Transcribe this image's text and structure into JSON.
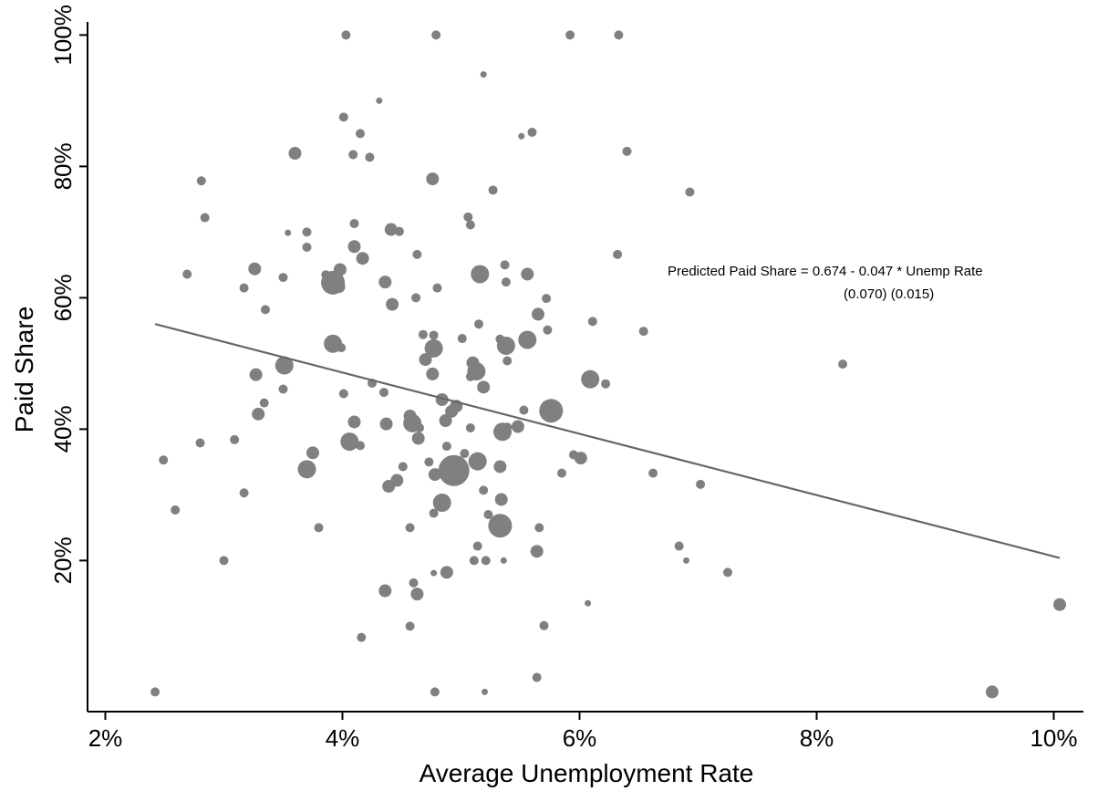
{
  "chart_data": {
    "type": "scatter",
    "xlabel": "Average Unemployment Rate",
    "ylabel": "Paid Share",
    "xlim": [
      1.85,
      10.25
    ],
    "ylim": [
      -3,
      102
    ],
    "x_ticks": [
      {
        "value": 2,
        "label": "2%"
      },
      {
        "value": 4,
        "label": "4%"
      },
      {
        "value": 6,
        "label": "6%"
      },
      {
        "value": 8,
        "label": "8%"
      },
      {
        "value": 10,
        "label": "10%"
      }
    ],
    "y_ticks": [
      {
        "value": 20,
        "label": "20%"
      },
      {
        "value": 40,
        "label": "40%"
      },
      {
        "value": 60,
        "label": "60%"
      },
      {
        "value": 80,
        "label": "80%"
      },
      {
        "value": 100,
        "label": "100%"
      }
    ],
    "grid": false,
    "marker_color": "#808080",
    "fit_line": {
      "x": [
        2.42,
        10.05
      ],
      "y": [
        56.0,
        20.4
      ],
      "color": "#666666"
    },
    "annotation": {
      "line1": "Predicted Paid Share = 0.674 - 0.047 * Unemp Rate",
      "line2": "(0.070) (0.015)"
    },
    "points": [
      [
        4.03,
        100,
        "s"
      ],
      [
        4.79,
        100,
        "s"
      ],
      [
        5.92,
        100,
        "s"
      ],
      [
        6.33,
        100,
        "s"
      ],
      [
        5.19,
        94,
        "xs"
      ],
      [
        4.31,
        90,
        "xs"
      ],
      [
        4.01,
        87.5,
        "s"
      ],
      [
        5.6,
        85.2,
        "s"
      ],
      [
        4.15,
        85,
        "s"
      ],
      [
        5.51,
        84.6,
        "xs"
      ],
      [
        3.6,
        82,
        "m"
      ],
      [
        4.09,
        81.8,
        "s"
      ],
      [
        4.23,
        81.4,
        "s"
      ],
      [
        6.4,
        82.3,
        "s"
      ],
      [
        2.81,
        77.8,
        "s"
      ],
      [
        4.76,
        78.1,
        "m"
      ],
      [
        5.27,
        76.4,
        "s"
      ],
      [
        6.93,
        76.1,
        "s"
      ],
      [
        2.84,
        72.2,
        "s"
      ],
      [
        4.1,
        71.3,
        "s"
      ],
      [
        5.06,
        72.3,
        "s"
      ],
      [
        5.08,
        71.1,
        "s"
      ],
      [
        3.54,
        69.9,
        "xs"
      ],
      [
        3.7,
        70,
        "s"
      ],
      [
        4.41,
        70.4,
        "m"
      ],
      [
        4.48,
        70.1,
        "s"
      ],
      [
        3.7,
        67.7,
        "s"
      ],
      [
        4.1,
        67.8,
        "m"
      ],
      [
        4.17,
        66,
        "m"
      ],
      [
        4.63,
        66.6,
        "s"
      ],
      [
        6.32,
        66.6,
        "s"
      ],
      [
        5.37,
        65,
        "s"
      ],
      [
        2.69,
        63.6,
        "s"
      ],
      [
        3.26,
        64.4,
        "m"
      ],
      [
        3.5,
        63.1,
        "s"
      ],
      [
        3.86,
        63.5,
        "s"
      ],
      [
        3.98,
        64.3,
        "m"
      ],
      [
        3.92,
        62.3,
        "xl"
      ],
      [
        3.97,
        61.7,
        "m"
      ],
      [
        4.36,
        62.4,
        "m"
      ],
      [
        4.8,
        61.5,
        "s"
      ],
      [
        5.16,
        63.6,
        "l"
      ],
      [
        5.38,
        62.4,
        "s"
      ],
      [
        5.56,
        63.6,
        "m"
      ],
      [
        3.17,
        61.5,
        "s"
      ],
      [
        4.62,
        60,
        "s"
      ],
      [
        5.72,
        59.9,
        "s"
      ],
      [
        4.42,
        59,
        "m"
      ],
      [
        3.35,
        58.2,
        "s"
      ],
      [
        5.65,
        57.5,
        "m"
      ],
      [
        6.11,
        56.4,
        "s"
      ],
      [
        5.15,
        56,
        "s"
      ],
      [
        6.54,
        54.9,
        "s"
      ],
      [
        5.73,
        55.1,
        "s"
      ],
      [
        4.68,
        54.4,
        "s"
      ],
      [
        4.77,
        54.3,
        "s"
      ],
      [
        5.01,
        53.8,
        "s"
      ],
      [
        5.33,
        53.7,
        "s"
      ],
      [
        5.56,
        53.6,
        "l"
      ],
      [
        3.92,
        53,
        "l"
      ],
      [
        3.99,
        52.4,
        "s"
      ],
      [
        4.77,
        52.3,
        "l"
      ],
      [
        5.38,
        52.7,
        "l"
      ],
      [
        5.39,
        50.4,
        "s"
      ],
      [
        4.7,
        50.6,
        "m"
      ],
      [
        5.1,
        50.1,
        "m"
      ],
      [
        5.13,
        48.8,
        "l"
      ],
      [
        4.76,
        48.4,
        "m"
      ],
      [
        5.08,
        48,
        "s"
      ],
      [
        8.22,
        49.9,
        "s"
      ],
      [
        3.51,
        49.7,
        "l"
      ],
      [
        3.27,
        48.3,
        "m"
      ],
      [
        6.09,
        47.6,
        "l"
      ],
      [
        6.22,
        46.9,
        "s"
      ],
      [
        4.25,
        47,
        "s"
      ],
      [
        5.19,
        46.4,
        "m"
      ],
      [
        3.5,
        46.1,
        "s"
      ],
      [
        4.01,
        45.4,
        "s"
      ],
      [
        4.35,
        45.6,
        "s"
      ],
      [
        4.84,
        44.5,
        "m"
      ],
      [
        3.34,
        44,
        "s"
      ],
      [
        4.96,
        43.5,
        "m"
      ],
      [
        4.92,
        42.7,
        "m"
      ],
      [
        5.76,
        42.8,
        "xl"
      ],
      [
        5.53,
        42.9,
        "s"
      ],
      [
        3.29,
        42.3,
        "m"
      ],
      [
        4.57,
        42,
        "m"
      ],
      [
        4.87,
        41.3,
        "m"
      ],
      [
        4.1,
        41.1,
        "m"
      ],
      [
        4.37,
        40.8,
        "m"
      ],
      [
        4.59,
        40.9,
        "l"
      ],
      [
        4.65,
        40.2,
        "s"
      ],
      [
        5.08,
        40.2,
        "s"
      ],
      [
        5.39,
        40.3,
        "s"
      ],
      [
        5.48,
        40.4,
        "m"
      ],
      [
        5.35,
        39.6,
        "l"
      ],
      [
        4.64,
        38.6,
        "m"
      ],
      [
        4.06,
        38.1,
        "l"
      ],
      [
        3.09,
        38.4,
        "s"
      ],
      [
        2.8,
        37.9,
        "s"
      ],
      [
        4.15,
        37.5,
        "s"
      ],
      [
        4.88,
        37.4,
        "s"
      ],
      [
        3.75,
        36.4,
        "m"
      ],
      [
        5.03,
        36.3,
        "s"
      ],
      [
        5.95,
        36.1,
        "s"
      ],
      [
        6.01,
        35.6,
        "m"
      ],
      [
        2.49,
        35.3,
        "s"
      ],
      [
        4.73,
        35,
        "s"
      ],
      [
        5.14,
        35.1,
        "l"
      ],
      [
        4.94,
        33.7,
        "xxl"
      ],
      [
        4.51,
        34.3,
        "s"
      ],
      [
        3.7,
        33.9,
        "l"
      ],
      [
        4.78,
        33.1,
        "m"
      ],
      [
        5.33,
        34.3,
        "m"
      ],
      [
        5.85,
        33.3,
        "s"
      ],
      [
        6.62,
        33.3,
        "s"
      ],
      [
        4.46,
        32.2,
        "m"
      ],
      [
        4.39,
        31.3,
        "m"
      ],
      [
        7.02,
        31.6,
        "s"
      ],
      [
        5.19,
        30.7,
        "s"
      ],
      [
        3.17,
        30.3,
        "s"
      ],
      [
        5.34,
        29.3,
        "m"
      ],
      [
        4.84,
        28.8,
        "l"
      ],
      [
        2.59,
        27.7,
        "s"
      ],
      [
        4.77,
        27.2,
        "s"
      ],
      [
        5.23,
        27,
        "s"
      ],
      [
        5.33,
        25.3,
        "xl"
      ],
      [
        3.8,
        25,
        "s"
      ],
      [
        4.57,
        25,
        "s"
      ],
      [
        5.66,
        25,
        "s"
      ],
      [
        6.84,
        22.2,
        "s"
      ],
      [
        5.14,
        22.2,
        "s"
      ],
      [
        5.64,
        21.4,
        "m"
      ],
      [
        3.0,
        20,
        "s"
      ],
      [
        5.11,
        20,
        "s"
      ],
      [
        5.21,
        20,
        "s"
      ],
      [
        5.36,
        20,
        "xs"
      ],
      [
        6.9,
        20,
        "xs"
      ],
      [
        4.77,
        18.1,
        "xs"
      ],
      [
        4.88,
        18.2,
        "m"
      ],
      [
        7.25,
        18.2,
        "s"
      ],
      [
        4.6,
        16.6,
        "s"
      ],
      [
        4.63,
        14.9,
        "m"
      ],
      [
        4.36,
        15.4,
        "m"
      ],
      [
        6.07,
        13.5,
        "xs"
      ],
      [
        10.05,
        13.3,
        "m"
      ],
      [
        4.57,
        10,
        "s"
      ],
      [
        5.7,
        10.1,
        "s"
      ],
      [
        4.16,
        8.3,
        "s"
      ],
      [
        5.64,
        2.2,
        "s"
      ],
      [
        2.42,
        0,
        "s"
      ],
      [
        4.78,
        0,
        "s"
      ],
      [
        5.2,
        0,
        "xs"
      ],
      [
        9.48,
        0,
        "m"
      ]
    ]
  }
}
